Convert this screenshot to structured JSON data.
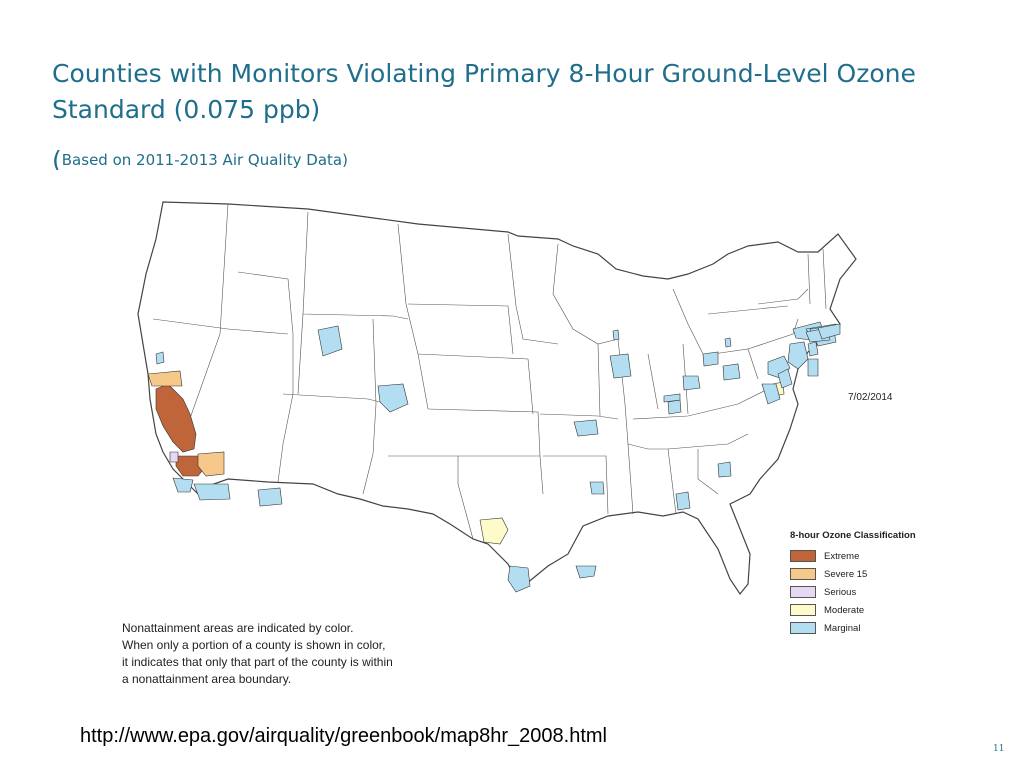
{
  "slide": {
    "title": "Counties with Monitors Violating Primary 8-Hour Ground-Level Ozone Standard (0.075 ppb)",
    "subtitle_open": "(",
    "subtitle": "Based on 2011-2013 Air Quality Data)",
    "url": "http://www.epa.gov/airquality/greenbook/map8hr_2008.html",
    "page_number": "11"
  },
  "map": {
    "date": "7/02/2014",
    "legend_title": "8-hour Ozone Classification",
    "legend": [
      {
        "label": "Extreme",
        "color": "#c0653a"
      },
      {
        "label": "Severe 15",
        "color": "#f6c98a"
      },
      {
        "label": "Serious",
        "color": "#e4d8f2"
      },
      {
        "label": "Moderate",
        "color": "#fdfbc9"
      },
      {
        "label": "Marginal",
        "color": "#b3def2"
      }
    ],
    "note_lines": [
      "Nonattainment areas are indicated by color.",
      "When only a portion of a county is shown in color,",
      "it indicates that only that part of the county is within",
      "a nonattainment area boundary."
    ]
  }
}
